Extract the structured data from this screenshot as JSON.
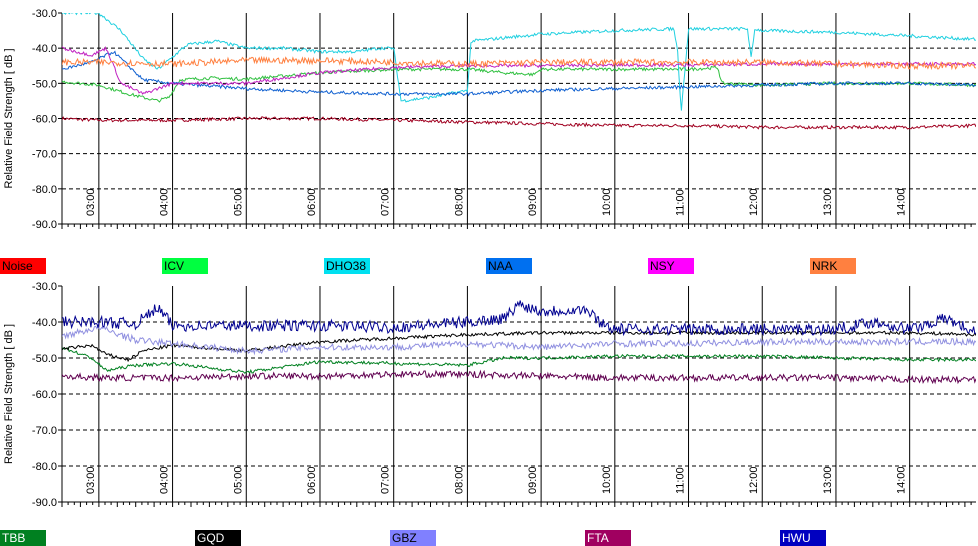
{
  "chart_data": [
    {
      "type": "line",
      "title": "",
      "xlabel": "",
      "ylabel": "Relative Field Strength [ dB ]",
      "ylim": [
        -90,
        -30
      ],
      "yticks": [
        "-30.0",
        "-40.0",
        "-50.0",
        "-60.0",
        "-70.0",
        "-80.0",
        "-90.0"
      ],
      "xlim": [
        2.5,
        14.9
      ],
      "xticks": [
        "03:00",
        "04:00",
        "05:00",
        "06:00",
        "07:00",
        "08:00",
        "09:00",
        "10:00",
        "11:00",
        "12:00",
        "13:00",
        "14:00"
      ],
      "grid": true,
      "legend_position": "bottom",
      "series": [
        {
          "name": "Noise",
          "color": "#ff0000",
          "line_color": "#a00020",
          "x": [
            2.5,
            3,
            4,
            5,
            6,
            7,
            8,
            9,
            10,
            11,
            12,
            13,
            14,
            14.9
          ],
          "y": [
            -60,
            -60.5,
            -60.5,
            -60,
            -60,
            -60.5,
            -61,
            -61.5,
            -62,
            -62,
            -62.5,
            -62.5,
            -62.5,
            -62
          ]
        },
        {
          "name": "ICV",
          "color": "#00ff40",
          "line_color": "#30c040",
          "x": [
            2.5,
            3.0,
            3.4,
            3.8,
            3.95,
            4.1,
            4.5,
            5,
            6,
            7,
            8,
            8.5,
            8.9,
            9,
            10,
            11,
            11.4,
            11.45,
            12,
            13,
            14,
            14.9
          ],
          "y": [
            -49.5,
            -50.5,
            -53,
            -55,
            -54,
            -49,
            -48.5,
            -48.8,
            -47,
            -46,
            -46,
            -47,
            -47.5,
            -46,
            -46,
            -46,
            -45.5,
            -50,
            -50.5,
            -50,
            -50,
            -50.5
          ]
        },
        {
          "name": "DHO38",
          "color": "#00e0f0",
          "line_color": "#20d0e0",
          "x": [
            2.5,
            3,
            3.3,
            3.6,
            3.8,
            4.2,
            4.6,
            5,
            5.5,
            6,
            6.5,
            6.8,
            7,
            7.1,
            7.5,
            8,
            8.05,
            9,
            10,
            10.8,
            10.85,
            10.9,
            11,
            11.5,
            11.8,
            11.85,
            11.9,
            12,
            13,
            14,
            14.9
          ],
          "y": [
            -30,
            -30,
            -35,
            -43,
            -46,
            -39,
            -38,
            -40,
            -40,
            -41,
            -41,
            -40,
            -40,
            -55,
            -54,
            -52,
            -38,
            -36,
            -35,
            -34.5,
            -40,
            -58,
            -34.5,
            -34.5,
            -34.5,
            -43,
            -34.5,
            -35,
            -35.5,
            -36.5,
            -37.5
          ]
        },
        {
          "name": "NAA",
          "color": "#0070f0",
          "line_color": "#1060d0",
          "x": [
            2.5,
            2.9,
            3.2,
            3.6,
            4,
            5,
            6,
            7,
            8,
            9,
            10,
            11,
            12,
            13,
            14,
            14.9
          ],
          "y": [
            -46,
            -44,
            -41,
            -49,
            -50,
            -51.5,
            -52.5,
            -53,
            -53,
            -52,
            -51.5,
            -51,
            -50.5,
            -50,
            -50,
            -50.5
          ]
        },
        {
          "name": "NSY",
          "color": "#ff00ff",
          "line_color": "#c020c0",
          "x": [
            2.5,
            2.9,
            3.1,
            3.3,
            3.6,
            4,
            5,
            6,
            7,
            8,
            9,
            10,
            11,
            12,
            13,
            14,
            14.9
          ],
          "y": [
            -40,
            -42,
            -40,
            -50,
            -53,
            -50,
            -50,
            -47,
            -45.5,
            -45,
            -45,
            -44.8,
            -44.8,
            -44.5,
            -44.5,
            -44.5,
            -44.5
          ]
        },
        {
          "name": "NRK",
          "color": "#ff8040",
          "line_color": "#ff8040",
          "x": [
            2.5,
            3,
            4,
            5,
            6,
            7,
            8,
            9,
            10,
            11,
            12,
            13,
            14,
            14.9
          ],
          "y": [
            -44,
            -44,
            -44.5,
            -43.5,
            -43.5,
            -44,
            -44.5,
            -44,
            -44,
            -44,
            -44,
            -44.5,
            -45,
            -45
          ]
        }
      ]
    },
    {
      "type": "line",
      "title": "",
      "xlabel": "",
      "ylabel": "Relative Field Strength [ dB ]",
      "ylim": [
        -90,
        -30
      ],
      "yticks": [
        "-30.0",
        "-40.0",
        "-50.0",
        "-60.0",
        "-70.0",
        "-80.0",
        "-90.0"
      ],
      "xlim": [
        2.5,
        14.9
      ],
      "xticks": [
        "03:00",
        "04:00",
        "05:00",
        "06:00",
        "07:00",
        "08:00",
        "09:00",
        "10:00",
        "11:00",
        "12:00",
        "13:00",
        "14:00"
      ],
      "grid": true,
      "legend_position": "bottom",
      "series": [
        {
          "name": "TBB",
          "color": "#008020",
          "line_color": "#008020",
          "x": [
            2.5,
            2.9,
            3.1,
            3.5,
            4,
            5,
            6,
            7,
            8,
            8.5,
            9,
            10,
            11,
            12,
            13,
            14,
            14.9
          ],
          "y": [
            -47,
            -50,
            -53.5,
            -52,
            -51.5,
            -54,
            -51,
            -51.5,
            -52,
            -50,
            -50,
            -49.5,
            -49.5,
            -49.5,
            -50,
            -50.5,
            -50.5
          ]
        },
        {
          "name": "GQD",
          "color": "#000000",
          "line_color": "#000000",
          "x": [
            2.5,
            2.9,
            3.1,
            3.4,
            3.6,
            4,
            5,
            6,
            7,
            8,
            9,
            10,
            11,
            12,
            13,
            14,
            14.9
          ],
          "y": [
            -47.5,
            -46.5,
            -49,
            -50.5,
            -48,
            -46.5,
            -48,
            -45.5,
            -44.5,
            -43.5,
            -43,
            -43,
            -43,
            -43,
            -43,
            -43,
            -43.5
          ]
        },
        {
          "name": "GBZ",
          "color": "#8080ff",
          "line_color": "#9090e0",
          "x": [
            2.5,
            3,
            3.5,
            4,
            5,
            6,
            7,
            8,
            9,
            10,
            11,
            12,
            13,
            14,
            14.9
          ],
          "y": [
            -44,
            -41.5,
            -45,
            -46,
            -48,
            -47,
            -47,
            -46,
            -47,
            -46,
            -46,
            -45.5,
            -45.5,
            -45.5,
            -45.5
          ]
        },
        {
          "name": "FTA",
          "color": "#a00060",
          "line_color": "#600050",
          "x": [
            2.5,
            3,
            4,
            5,
            6,
            7,
            8,
            9,
            10,
            11,
            12,
            13,
            14,
            14.9
          ],
          "y": [
            -55,
            -55.5,
            -55.5,
            -55,
            -55,
            -54.5,
            -54.5,
            -55,
            -55.5,
            -55.5,
            -55.5,
            -55.5,
            -56,
            -56
          ]
        },
        {
          "name": "HWU",
          "color": "#0000c0",
          "line_color": "#000090",
          "x": [
            2.5,
            3,
            3.5,
            3.8,
            4,
            5,
            6,
            7,
            8,
            8.5,
            8.7,
            9,
            9.6,
            9.8,
            10,
            10.5,
            11,
            12,
            13,
            13.5,
            14,
            14.5,
            14.9
          ],
          "y": [
            -40,
            -40,
            -40.5,
            -36,
            -41,
            -41,
            -41,
            -41.5,
            -40,
            -39,
            -35,
            -37,
            -36.5,
            -40,
            -42,
            -42,
            -42,
            -42,
            -42,
            -40,
            -42,
            -39,
            -43
          ]
        }
      ]
    }
  ]
}
